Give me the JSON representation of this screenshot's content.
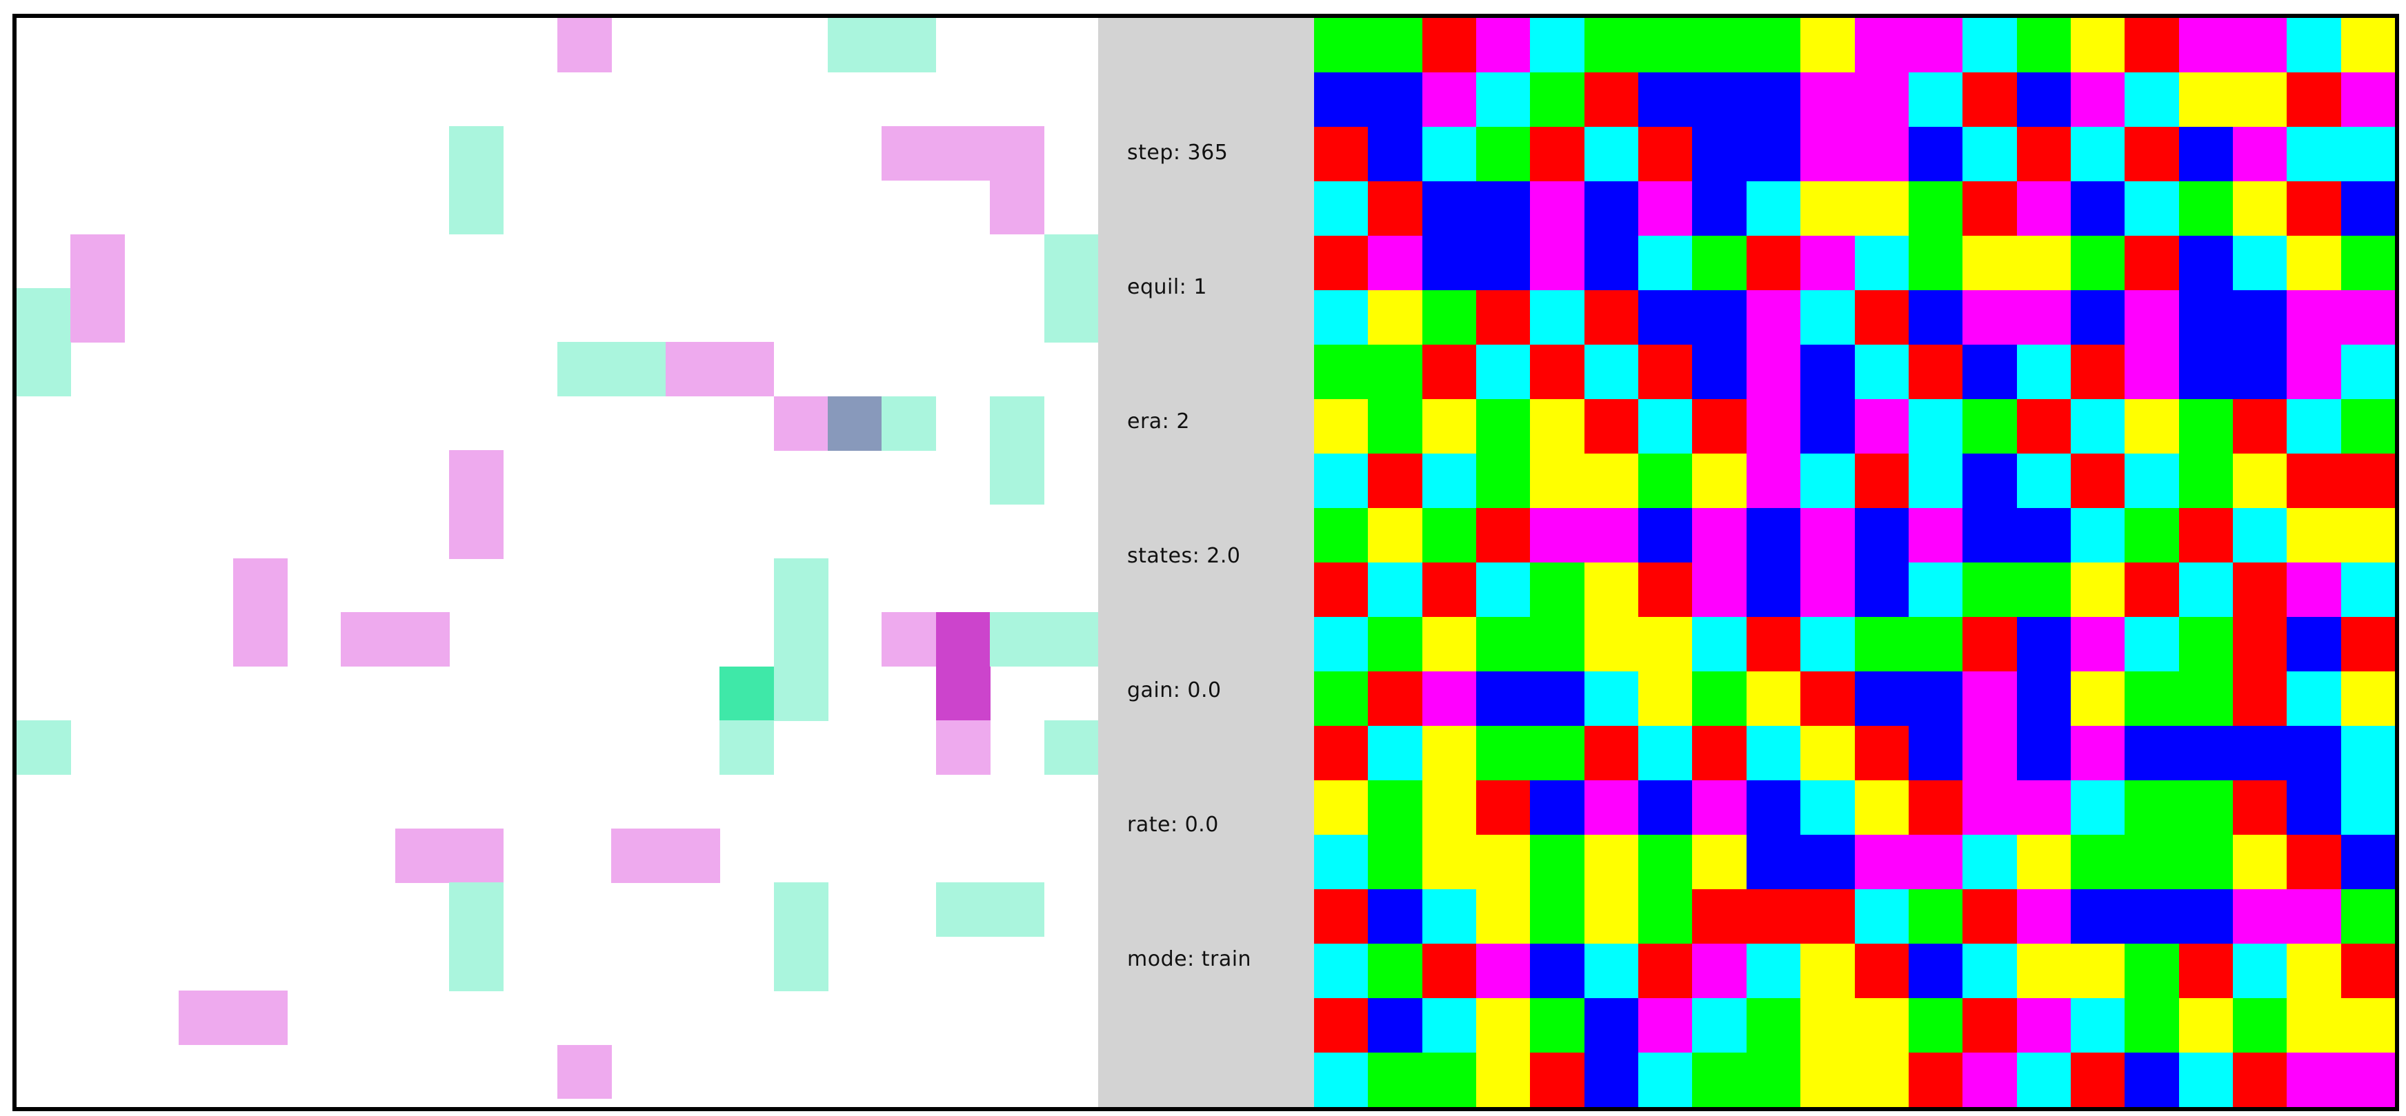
{
  "stats": [
    {
      "label": "step: 365"
    },
    {
      "label": "equil: 1"
    },
    {
      "label": "era: 2"
    },
    {
      "label": "states: 2.0"
    },
    {
      "label": "gain: 0.0"
    },
    {
      "label": "rate: 0.0"
    },
    {
      "label": "mode: train"
    }
  ],
  "colors": {
    "pink": "#eeaaee",
    "mint": "#aaf5dd",
    "slate": "#8899bb",
    "green_dark": "#3fe8a8",
    "magenta_dark": "#cc44cc",
    "red": "#ff0000",
    "green": "#00ff00",
    "blue": "#0000ff",
    "yellow": "#ffff00",
    "magenta": "#ff00ff",
    "cyan": "#00ffff"
  },
  "left_board": {
    "grid_size": 20,
    "cells": [
      [
        10,
        0,
        "pink"
      ],
      [
        15,
        0,
        "mint"
      ],
      [
        16,
        0,
        "mint"
      ],
      [
        8,
        2,
        "mint"
      ],
      [
        16,
        2,
        "pink"
      ],
      [
        17,
        2,
        "pink"
      ],
      [
        18,
        2,
        "pink"
      ],
      [
        8,
        3,
        "mint"
      ],
      [
        18,
        3,
        "pink"
      ],
      [
        1,
        4,
        "pink"
      ],
      [
        19,
        4,
        "mint"
      ],
      [
        0,
        5,
        "mint"
      ],
      [
        1,
        5,
        "pink"
      ],
      [
        19,
        5,
        "mint"
      ],
      [
        0,
        6,
        "mint"
      ],
      [
        10,
        6,
        "mint"
      ],
      [
        11,
        6,
        "mint"
      ],
      [
        12,
        6,
        "pink"
      ],
      [
        13,
        6,
        "pink"
      ],
      [
        14,
        7,
        "pink"
      ],
      [
        15,
        7,
        "slate"
      ],
      [
        16,
        7,
        "mint"
      ],
      [
        18,
        7,
        "mint"
      ],
      [
        18,
        8,
        "mint"
      ],
      [
        8,
        8,
        "pink"
      ],
      [
        8,
        9,
        "pink"
      ],
      [
        4,
        10,
        "pink"
      ],
      [
        14,
        10,
        "mint"
      ],
      [
        4,
        11,
        "pink"
      ],
      [
        6,
        11,
        "pink"
      ],
      [
        7,
        11,
        "pink"
      ],
      [
        14,
        11,
        "mint"
      ],
      [
        16,
        11,
        "pink"
      ],
      [
        17,
        11,
        "magenta_dark"
      ],
      [
        18,
        11,
        "mint"
      ],
      [
        19,
        11,
        "mint"
      ],
      [
        13,
        12,
        "green_dark"
      ],
      [
        14,
        12,
        "mint"
      ],
      [
        17,
        12,
        "magenta_dark"
      ],
      [
        0,
        13,
        "mint"
      ],
      [
        13,
        13,
        "mint"
      ],
      [
        17,
        13,
        "pink"
      ],
      [
        19,
        13,
        "mint"
      ],
      [
        7,
        15,
        "pink"
      ],
      [
        8,
        15,
        "pink"
      ],
      [
        11,
        15,
        "pink"
      ],
      [
        12,
        15,
        "pink"
      ],
      [
        8,
        16,
        "mint"
      ],
      [
        14,
        16,
        "mint"
      ],
      [
        17,
        16,
        "mint"
      ],
      [
        18,
        16,
        "mint"
      ],
      [
        8,
        17,
        "mint"
      ],
      [
        14,
        17,
        "mint"
      ],
      [
        3,
        18,
        "pink"
      ],
      [
        4,
        18,
        "pink"
      ],
      [
        10,
        19,
        "pink"
      ]
    ]
  },
  "right_board": {
    "cols": 20,
    "rows": 20,
    "legend": {
      "R": "red",
      "G": "green",
      "B": "blue",
      "Y": "yellow",
      "M": "magenta",
      "C": "cyan"
    },
    "grid": [
      "GGRMCGGGGYMMCGYRMMCY",
      "BBMCGRBBBMMCRBMCYYRM",
      "RBCGRCRBBMMBCRCRBMCC",
      "CRBBMBMBCYYGRMBCGYRB",
      "RMBBMBCGRMCGYYGRBCYG",
      "CYGRCRBBMCRBMMBMBBMM",
      "GGRCRCRBMBCRBCRMBBMC",
      "YGYGYRCRMBMCGRCYGRCG",
      "CRCGYYGYMCRCBCRCGYRR",
      "GYGRMMBMBMBMBBCGRCYY",
      "RCRCGYRMBMBCGGYRCRMC",
      "CGYGGYYCRCGGRBMCGRBR",
      "GRMBBCYGYRBBMBYGGRCY",
      "RCYGGRCRCYRBMBMBBBBC",
      "YGYRBMBMBCYRMMCGGRBC",
      "CGYYGYGYBBMMCYGGGYRB",
      "RBCYGYGRRRCGRMBBBMMG",
      "CGRMBCRMCYRBCYYGRCYR",
      "RBCYGBMCGYYGRMCGYGYY",
      "CGGYRBCGGYYRMCRBCRMM"
    ]
  }
}
